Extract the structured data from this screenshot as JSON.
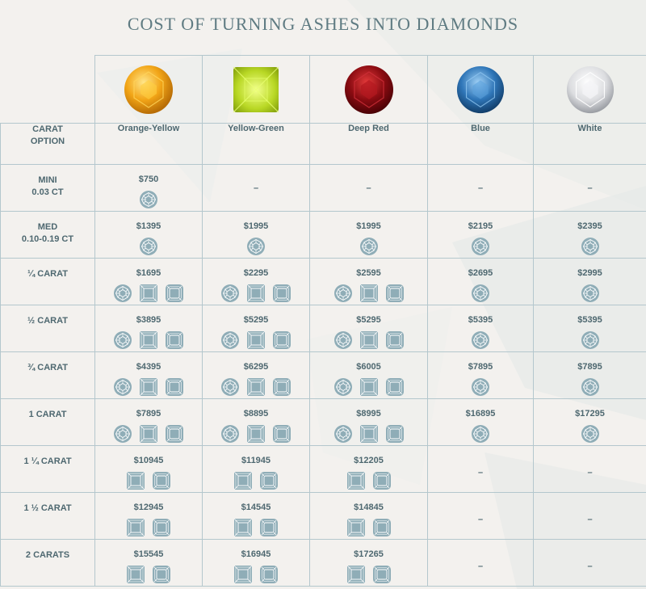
{
  "title": "COST OF TURNING ASHES INTO DIAMONDS",
  "colors": {
    "accent": "#5f7b82",
    "icon_fill": "#8fadb7",
    "grid_line": "#b4c7cd",
    "orange_yellow": "#f2a517",
    "yellow_green": "#b9d825",
    "deep_red": "#8c0c12",
    "blue": "#2f76b8",
    "white": "#dcdde0"
  },
  "columns": [
    {
      "label": "Orange-Yellow",
      "gem": "orange-yellow-round-diamond-icon"
    },
    {
      "label": "Yellow-Green",
      "gem": "yellow-green-princess-diamond-icon"
    },
    {
      "label": "Deep Red",
      "gem": "deep-red-round-diamond-icon"
    },
    {
      "label": "Blue",
      "gem": "blue-round-diamond-icon"
    },
    {
      "label": "White",
      "gem": "white-round-diamond-icon"
    }
  ],
  "header": {
    "carat_line1": "CARAT",
    "carat_line2": "OPTION"
  },
  "dash": "–",
  "rows": [
    {
      "label1": "MINI",
      "label2": "0.03 CT",
      "cells": [
        {
          "price": "$750",
          "shapes": [
            "round"
          ]
        },
        null,
        null,
        null,
        null
      ]
    },
    {
      "label1": "MED",
      "label2": "0.10-0.19 CT",
      "cells": [
        {
          "price": "$1395",
          "shapes": [
            "round"
          ]
        },
        {
          "price": "$1995",
          "shapes": [
            "round"
          ]
        },
        {
          "price": "$1995",
          "shapes": [
            "round"
          ]
        },
        {
          "price": "$2195",
          "shapes": [
            "round"
          ]
        },
        {
          "price": "$2395",
          "shapes": [
            "round"
          ]
        }
      ]
    },
    {
      "label1": "¼ CARAT",
      "label2": "",
      "cells": [
        {
          "price": "$1695",
          "shapes": [
            "round",
            "princess",
            "cushion"
          ]
        },
        {
          "price": "$2295",
          "shapes": [
            "round",
            "princess",
            "cushion"
          ]
        },
        {
          "price": "$2595",
          "shapes": [
            "round",
            "princess",
            "cushion"
          ]
        },
        {
          "price": "$2695",
          "shapes": [
            "round"
          ]
        },
        {
          "price": "$2995",
          "shapes": [
            "round"
          ]
        }
      ]
    },
    {
      "label1": "½ CARAT",
      "label2": "",
      "cells": [
        {
          "price": "$3895",
          "shapes": [
            "round",
            "princess",
            "cushion"
          ]
        },
        {
          "price": "$5295",
          "shapes": [
            "round",
            "princess",
            "cushion"
          ]
        },
        {
          "price": "$5295",
          "shapes": [
            "round",
            "princess",
            "cushion"
          ]
        },
        {
          "price": "$5395",
          "shapes": [
            "round"
          ]
        },
        {
          "price": "$5395",
          "shapes": [
            "round"
          ]
        }
      ]
    },
    {
      "label1": "¾ CARAT",
      "label2": "",
      "cells": [
        {
          "price": "$4395",
          "shapes": [
            "round",
            "princess",
            "cushion"
          ]
        },
        {
          "price": "$6295",
          "shapes": [
            "round",
            "princess",
            "cushion"
          ]
        },
        {
          "price": "$6005",
          "shapes": [
            "round",
            "princess",
            "cushion"
          ]
        },
        {
          "price": "$7895",
          "shapes": [
            "round"
          ]
        },
        {
          "price": "$7895",
          "shapes": [
            "round"
          ]
        }
      ]
    },
    {
      "label1": "1 CARAT",
      "label2": "",
      "cells": [
        {
          "price": "$7895",
          "shapes": [
            "round",
            "princess",
            "cushion"
          ]
        },
        {
          "price": "$8895",
          "shapes": [
            "round",
            "princess",
            "cushion"
          ]
        },
        {
          "price": "$8995",
          "shapes": [
            "round",
            "princess",
            "cushion"
          ]
        },
        {
          "price": "$16895",
          "shapes": [
            "round"
          ]
        },
        {
          "price": "$17295",
          "shapes": [
            "round"
          ]
        }
      ]
    },
    {
      "label1": "1 ¼ CARAT",
      "label2": "",
      "cells": [
        {
          "price": "$10945",
          "shapes": [
            "princess",
            "cushion"
          ]
        },
        {
          "price": "$11945",
          "shapes": [
            "princess",
            "cushion"
          ]
        },
        {
          "price": "$12205",
          "shapes": [
            "princess",
            "cushion"
          ]
        },
        null,
        null
      ]
    },
    {
      "label1": "1 ½ CARAT",
      "label2": "",
      "cells": [
        {
          "price": "$12945",
          "shapes": [
            "princess",
            "cushion"
          ]
        },
        {
          "price": "$14545",
          "shapes": [
            "princess",
            "cushion"
          ]
        },
        {
          "price": "$14845",
          "shapes": [
            "princess",
            "cushion"
          ]
        },
        null,
        null
      ]
    },
    {
      "label1": "2 CARATS",
      "label2": "",
      "cells": [
        {
          "price": "$15545",
          "shapes": [
            "princess",
            "cushion"
          ]
        },
        {
          "price": "$16945",
          "shapes": [
            "princess",
            "cushion"
          ]
        },
        {
          "price": "$17265",
          "shapes": [
            "princess",
            "cushion"
          ]
        },
        null,
        null
      ]
    }
  ]
}
